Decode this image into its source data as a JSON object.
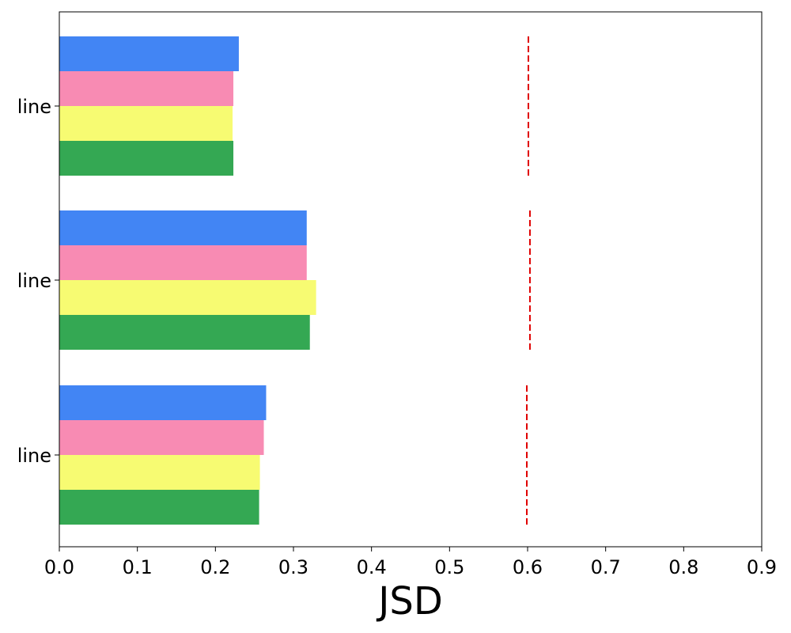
{
  "chart_data": {
    "type": "bar",
    "orientation": "horizontal",
    "categories": [
      "line",
      "line",
      "line"
    ],
    "series": [
      {
        "values": [
          0.23,
          0.317,
          0.265
        ],
        "color": "#4285F4"
      },
      {
        "values": [
          0.223,
          0.317,
          0.262
        ],
        "color": "#F88BB3"
      },
      {
        "values": [
          0.222,
          0.329,
          0.257
        ],
        "color": "#F7FB72"
      },
      {
        "values": [
          0.223,
          0.321,
          0.256
        ],
        "color": "#34A853"
      }
    ],
    "reference_lines": {
      "values": [
        0.601,
        0.603,
        0.599
      ],
      "color": "#E00000",
      "style": "dashed"
    },
    "xlabel": "JSD",
    "ylabel": "",
    "title": "",
    "xlim": [
      0.0,
      0.9
    ],
    "xticks": [
      "0.0",
      "0.1",
      "0.2",
      "0.3",
      "0.4",
      "0.5",
      "0.6",
      "0.7",
      "0.8",
      "0.9"
    ],
    "grid": false,
    "legend": "none"
  }
}
